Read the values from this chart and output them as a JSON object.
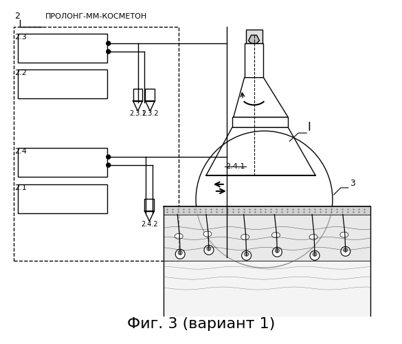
{
  "title": "Фиг. 3 (вариант 1)",
  "title_fontsize": 16,
  "label_2": "2",
  "label_prolong": "ПРОЛОНГ-ММ-КОСМЕТОН",
  "label_23": "2.3",
  "label_22": "2.2",
  "label_24": "2.4",
  "label_21": "2.1",
  "label_231": "2.3.1",
  "label_232": "2.3.2",
  "label_241": "2.4.1",
  "label_242": "2.4.2",
  "label_I": "I",
  "label_3": "3",
  "bg_color": "#ffffff",
  "box_color": "#000000",
  "line_color": "#000000"
}
